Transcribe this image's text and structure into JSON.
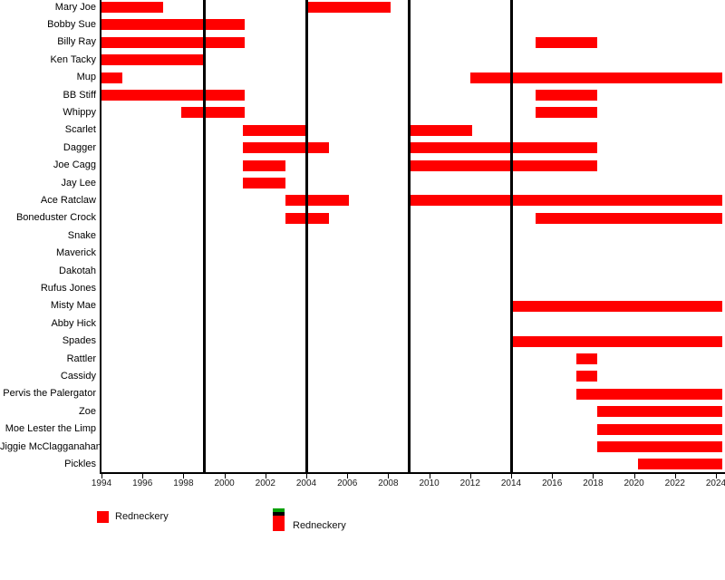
{
  "colors": {
    "bar_red": "#ff0000",
    "milestone_line": "#000000",
    "legend_green": "#00a000",
    "legend_black": "#000000"
  },
  "legend": [
    {
      "label": "Redneckery",
      "swatch": "red-square"
    },
    {
      "label": "Redneckery",
      "swatch": "green-black-red-stack"
    }
  ],
  "chart_data": {
    "type": "gantt",
    "title": "",
    "xlabel": "",
    "ylabel": "",
    "x_axis": {
      "min": 1994,
      "max": 2024.5,
      "tick_step": 2,
      "ticks": [
        1994,
        1996,
        1998,
        2000,
        2002,
        2004,
        2006,
        2008,
        2010,
        2012,
        2014,
        2016,
        2018,
        2020,
        2022,
        2024
      ]
    },
    "milestone_lines": [
      1999,
      2004,
      2009,
      2014
    ],
    "bar_color": "#ff0000",
    "rows": [
      {
        "label": "Mary Joe",
        "bars": [
          [
            1994,
            1997
          ],
          [
            2004,
            2008.1
          ]
        ]
      },
      {
        "label": "Bobby Sue",
        "bars": [
          [
            1994,
            2001
          ]
        ]
      },
      {
        "label": "Billy Ray",
        "bars": [
          [
            1994,
            2001
          ],
          [
            2015.2,
            2018.2
          ]
        ]
      },
      {
        "label": "Ken Tacky",
        "bars": [
          [
            1994,
            1999
          ]
        ]
      },
      {
        "label": "Mup",
        "bars": [
          [
            1994,
            1995
          ],
          [
            2012,
            2024.3
          ]
        ]
      },
      {
        "label": "BB Stiff",
        "bars": [
          [
            1994,
            2001
          ],
          [
            2015.2,
            2018.2
          ]
        ]
      },
      {
        "label": "Whippy",
        "bars": [
          [
            1997.9,
            2001
          ],
          [
            2015.2,
            2018.2
          ]
        ]
      },
      {
        "label": "Scarlet",
        "bars": [
          [
            2000.9,
            2004
          ],
          [
            2009.1,
            2012.1
          ]
        ]
      },
      {
        "label": "Dagger",
        "bars": [
          [
            2000.9,
            2005.1
          ],
          [
            2009.1,
            2018.2
          ]
        ]
      },
      {
        "label": "Joe Cagg",
        "bars": [
          [
            2000.9,
            2003
          ],
          [
            2009.1,
            2018.2
          ]
        ]
      },
      {
        "label": "Jay Lee",
        "bars": [
          [
            2000.9,
            2003
          ]
        ]
      },
      {
        "label": "Ace Ratclaw",
        "bars": [
          [
            2003,
            2006.1
          ],
          [
            2009.1,
            2024.3
          ]
        ]
      },
      {
        "label": "Boneduster Crock",
        "bars": [
          [
            2003,
            2005.1
          ],
          [
            2015.2,
            2024.3
          ]
        ]
      },
      {
        "label": "Snake",
        "bars": []
      },
      {
        "label": "Maverick",
        "bars": []
      },
      {
        "label": "Dakotah",
        "bars": []
      },
      {
        "label": "Rufus Jones",
        "bars": []
      },
      {
        "label": "Misty Mae",
        "bars": [
          [
            2014.1,
            2024.3
          ]
        ]
      },
      {
        "label": "Abby Hick",
        "bars": []
      },
      {
        "label": "Spades",
        "bars": [
          [
            2014.1,
            2024.3
          ]
        ]
      },
      {
        "label": "Rattler",
        "bars": [
          [
            2017.2,
            2018.2
          ]
        ]
      },
      {
        "label": "Cassidy",
        "bars": [
          [
            2017.2,
            2018.2
          ]
        ]
      },
      {
        "label": "Pervis the Palergator",
        "bars": [
          [
            2017.2,
            2024.3
          ]
        ]
      },
      {
        "label": "Zoe",
        "bars": [
          [
            2018.2,
            2024.3
          ]
        ]
      },
      {
        "label": "Moe Lester the Limp",
        "bars": [
          [
            2018.2,
            2024.3
          ]
        ]
      },
      {
        "label": "Jiggie McClagganahan",
        "bars": [
          [
            2018.2,
            2024.3
          ]
        ]
      },
      {
        "label": "Pickles",
        "bars": [
          [
            2020.2,
            2024.3
          ]
        ]
      }
    ]
  }
}
